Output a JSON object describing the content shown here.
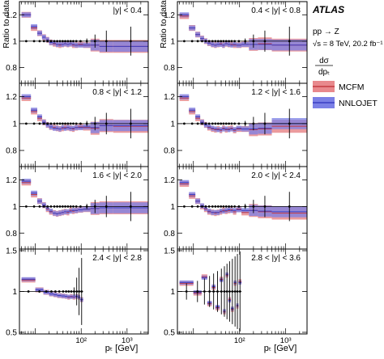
{
  "figure": {
    "experiment": "ATLAS",
    "process": "pp → Z",
    "energy": "√s = 8 TeV, 20.2 fb⁻¹",
    "observable": {
      "numerator": "dσ",
      "denominator": "dpₜ"
    },
    "legend": [
      "MCFM",
      "NNLOJET"
    ],
    "colors": {
      "mcfm": "#e8898d",
      "nnlojet": "#7b80e6",
      "overlap": "#9a4a8a",
      "data": "#000000"
    }
  },
  "chart_data": {
    "type": "scatter",
    "title": "",
    "ylabel": "Ratio to data",
    "xlabel": "pₜ [GeV]",
    "x_scale": "log",
    "x_ticks": [
      {
        "value": 100,
        "label": "10²"
      },
      {
        "value": 1000,
        "label": "10³"
      }
    ],
    "xlim": [
      4.5,
      2900
    ],
    "legend_position": "top-right",
    "panels": [
      {
        "label": "|y| < 0.4",
        "ylim": [
          0.68,
          1.3
        ],
        "yticks": [
          0.8,
          1,
          1.2
        ],
        "extent": "full",
        "mcfm": [
          1.2,
          1.1,
          1.06,
          1.03,
          1.01,
          0.99,
          0.98,
          0.975,
          0.97,
          0.975,
          0.98,
          0.975,
          0.98,
          0.97,
          0.97,
          0.975,
          0.97,
          0.97,
          0.96,
          0.96
        ],
        "nnlojet": [
          1.2,
          1.11,
          1.06,
          1.03,
          1.01,
          0.99,
          0.985,
          0.975,
          0.975,
          0.975,
          0.98,
          0.975,
          0.98,
          0.975,
          0.97,
          0.97,
          0.97,
          0.97,
          0.96,
          0.96
        ]
      },
      {
        "label": "0.4 < |y| < 0.8",
        "ylim": [
          0.68,
          1.3
        ],
        "yticks": [
          0.8,
          1,
          1.2
        ],
        "extent": "full",
        "mcfm": [
          1.19,
          1.1,
          1.05,
          1.02,
          1.0,
          0.985,
          0.975,
          0.97,
          0.975,
          0.98,
          0.97,
          0.98,
          0.975,
          0.975,
          0.97,
          0.97,
          0.975,
          0.975,
          0.98,
          0.97
        ],
        "nnlojet": [
          1.2,
          1.1,
          1.05,
          1.02,
          1.0,
          0.985,
          0.975,
          0.97,
          0.975,
          0.975,
          0.97,
          0.98,
          0.975,
          0.97,
          0.975,
          0.97,
          0.975,
          0.975,
          0.975,
          0.97
        ]
      },
      {
        "label": "0.8 < |y| < 1.2",
        "ylim": [
          0.68,
          1.3
        ],
        "yticks": [
          0.8,
          1,
          1.2
        ],
        "extent": "full",
        "mcfm": [
          1.19,
          1.09,
          1.04,
          1.01,
          0.99,
          0.975,
          0.97,
          0.965,
          0.96,
          0.965,
          0.97,
          0.97,
          0.965,
          0.96,
          0.97,
          0.975,
          0.97,
          0.965,
          0.985,
          0.98
        ],
        "nnlojet": [
          1.2,
          1.1,
          1.05,
          1.01,
          0.99,
          0.975,
          0.965,
          0.965,
          0.96,
          0.97,
          0.965,
          0.97,
          0.965,
          0.965,
          0.97,
          0.97,
          0.975,
          0.97,
          0.985,
          0.985
        ]
      },
      {
        "label": "1.2 < |y| < 1.6",
        "ylim": [
          0.68,
          1.3
        ],
        "yticks": [
          0.8,
          1,
          1.2
        ],
        "extent": "full",
        "mcfm": [
          1.19,
          1.09,
          1.04,
          1.01,
          0.99,
          0.97,
          0.96,
          0.955,
          0.96,
          0.95,
          0.965,
          0.955,
          0.96,
          0.965,
          0.95,
          0.96,
          0.96,
          0.955,
          0.96,
          0.98
        ],
        "nnlojet": [
          1.2,
          1.1,
          1.05,
          1.01,
          0.99,
          0.975,
          0.965,
          0.96,
          0.955,
          0.955,
          0.96,
          0.96,
          0.955,
          0.96,
          0.955,
          0.965,
          0.96,
          0.96,
          0.965,
          1.0
        ]
      },
      {
        "label": "1.6 < |y| < 2.0",
        "ylim": [
          0.68,
          1.3
        ],
        "yticks": [
          0.8,
          1,
          1.2
        ],
        "extent": "full",
        "mcfm": [
          1.18,
          1.09,
          1.04,
          1.01,
          0.98,
          0.96,
          0.95,
          0.945,
          0.95,
          0.955,
          0.96,
          0.955,
          0.97,
          0.965,
          0.97,
          0.975,
          0.98,
          0.985,
          0.99,
          0.99
        ],
        "nnlojet": [
          1.19,
          1.1,
          1.04,
          1.01,
          0.985,
          0.965,
          0.95,
          0.945,
          0.95,
          0.955,
          0.96,
          0.96,
          0.965,
          0.97,
          0.97,
          0.975,
          0.98,
          0.985,
          0.99,
          0.99
        ]
      },
      {
        "label": "2.0 < |y| < 2.4",
        "ylim": [
          0.68,
          1.3
        ],
        "yticks": [
          0.8,
          1,
          1.2
        ],
        "extent": "full",
        "mcfm": [
          1.17,
          1.08,
          1.04,
          1.0,
          0.98,
          0.96,
          0.955,
          0.95,
          0.955,
          0.96,
          0.97,
          0.965,
          0.97,
          0.975,
          0.96,
          0.98,
          0.955,
          0.97,
          0.96,
          0.95
        ],
        "nnlojet": [
          1.18,
          1.09,
          1.04,
          1.005,
          0.985,
          0.965,
          0.955,
          0.955,
          0.955,
          0.965,
          0.965,
          0.97,
          0.975,
          0.97,
          0.97,
          0.975,
          0.97,
          0.97,
          0.965,
          0.96
        ]
      },
      {
        "label": "2.4 < |y| < 2.8",
        "ylim": [
          0.48,
          1.52
        ],
        "yticks": [
          0.5,
          1,
          1.5
        ],
        "extent": "short",
        "mcfm": [
          1.14,
          1.02,
          0.99,
          0.97,
          0.96,
          0.95,
          0.945,
          0.94,
          0.93,
          0.94,
          0.93,
          0.94,
          0.93,
          0.9
        ],
        "nnlojet": [
          1.15,
          1.02,
          0.99,
          0.97,
          0.96,
          0.95,
          0.945,
          0.94,
          0.935,
          0.935,
          0.935,
          0.94,
          0.93,
          0.9
        ]
      },
      {
        "label": "2.8 < |y| < 3.6",
        "ylim": [
          0.48,
          1.52
        ],
        "yticks": [
          0.5,
          1,
          1.5
        ],
        "extent": "short",
        "mcfm": [
          1.1,
          0.98,
          1.18,
          0.85,
          1.05,
          0.8,
          1.15,
          0.75,
          1.2,
          0.9,
          0.78,
          1.1,
          0.82,
          1.12
        ],
        "nnlojet": [
          1.11,
          0.99,
          1.17,
          0.86,
          1.06,
          0.81,
          1.14,
          0.76,
          1.21,
          0.89,
          0.79,
          1.11,
          0.83,
          1.11
        ]
      }
    ]
  }
}
